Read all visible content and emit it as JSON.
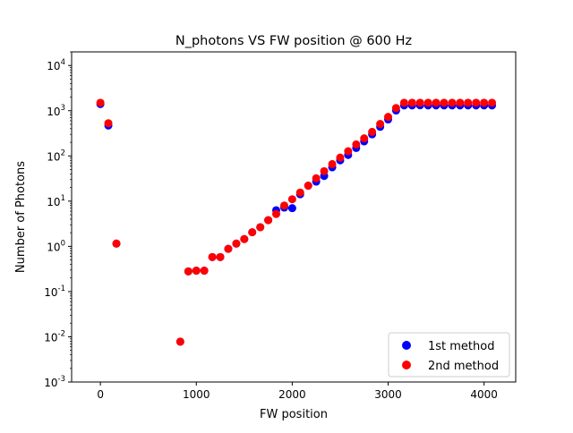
{
  "chart_data": {
    "type": "scatter",
    "title": "N_photons VS FW position @ 600 Hz",
    "xlabel": "FW position",
    "ylabel": "Number of Photons",
    "xlim": [
      -300,
      4330
    ],
    "ylim": [
      0.001,
      20000
    ],
    "yscale": "log",
    "x_ticks": [
      0,
      1000,
      2000,
      3000,
      4000
    ],
    "y_tick_exponents": [
      -3,
      -2,
      -1,
      0,
      1,
      2,
      3,
      4
    ],
    "y_tick_base": "10",
    "grid": false,
    "legend_location": "lower right",
    "series": [
      {
        "name": "1st method",
        "color": "#0000ff",
        "points": [
          [
            0,
            1400
          ],
          [
            83,
            470
          ],
          [
            167,
            1.15
          ],
          [
            833,
            0.0078
          ],
          [
            917,
            0.28
          ],
          [
            1000,
            0.29
          ],
          [
            1083,
            0.29
          ],
          [
            1167,
            0.58
          ],
          [
            1250,
            0.58
          ],
          [
            1333,
            0.88
          ],
          [
            1417,
            1.15
          ],
          [
            1500,
            1.45
          ],
          [
            1583,
            2.05
          ],
          [
            1667,
            2.65
          ],
          [
            1750,
            3.8
          ],
          [
            1833,
            6.3
          ],
          [
            1917,
            7.2
          ],
          [
            2000,
            7.0
          ],
          [
            2083,
            14.2
          ],
          [
            2167,
            22
          ],
          [
            2250,
            27
          ],
          [
            2333,
            36
          ],
          [
            2417,
            56
          ],
          [
            2500,
            80
          ],
          [
            2583,
            105
          ],
          [
            2667,
            150
          ],
          [
            2750,
            210
          ],
          [
            2833,
            300
          ],
          [
            2917,
            440
          ],
          [
            3000,
            640
          ],
          [
            3083,
            1010
          ],
          [
            3167,
            1310
          ],
          [
            3250,
            1310
          ],
          [
            3333,
            1320
          ],
          [
            3417,
            1310
          ],
          [
            3500,
            1310
          ],
          [
            3583,
            1310
          ],
          [
            3667,
            1310
          ],
          [
            3750,
            1310
          ],
          [
            3833,
            1310
          ],
          [
            3917,
            1310
          ],
          [
            4000,
            1310
          ],
          [
            4083,
            1310
          ]
        ]
      },
      {
        "name": "2nd method",
        "color": "#ff0000",
        "points": [
          [
            0,
            1500
          ],
          [
            83,
            530
          ],
          [
            167,
            1.15
          ],
          [
            833,
            0.0078
          ],
          [
            917,
            0.28
          ],
          [
            1000,
            0.29
          ],
          [
            1083,
            0.29
          ],
          [
            1167,
            0.58
          ],
          [
            1250,
            0.58
          ],
          [
            1333,
            0.88
          ],
          [
            1417,
            1.15
          ],
          [
            1500,
            1.45
          ],
          [
            1583,
            2.05
          ],
          [
            1667,
            2.65
          ],
          [
            1750,
            3.8
          ],
          [
            1833,
            5.2
          ],
          [
            1917,
            8.0
          ],
          [
            2000,
            11
          ],
          [
            2083,
            15.5
          ],
          [
            2167,
            22
          ],
          [
            2250,
            32
          ],
          [
            2333,
            46
          ],
          [
            2417,
            66
          ],
          [
            2500,
            92
          ],
          [
            2583,
            127
          ],
          [
            2667,
            180
          ],
          [
            2750,
            245
          ],
          [
            2833,
            340
          ],
          [
            2917,
            510
          ],
          [
            3000,
            730
          ],
          [
            3083,
            1150
          ],
          [
            3167,
            1500
          ],
          [
            3250,
            1500
          ],
          [
            3333,
            1500
          ],
          [
            3417,
            1500
          ],
          [
            3500,
            1500
          ],
          [
            3583,
            1500
          ],
          [
            3667,
            1500
          ],
          [
            3750,
            1500
          ],
          [
            3833,
            1500
          ],
          [
            3917,
            1500
          ],
          [
            4000,
            1500
          ],
          [
            4083,
            1500
          ]
        ]
      }
    ]
  }
}
